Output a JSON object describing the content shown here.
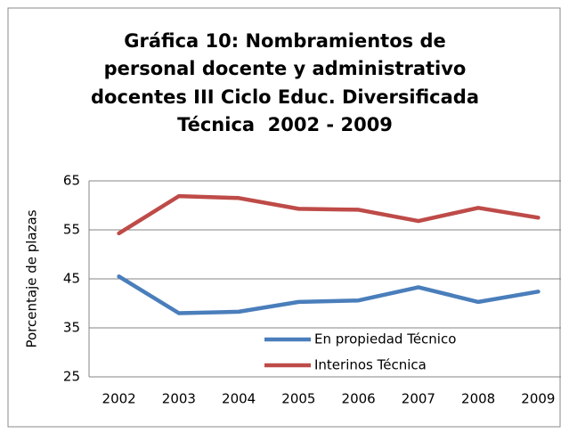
{
  "chart_data": {
    "type": "line",
    "title": [
      "Gráfica 10: Nombramientos de",
      "personal docente y administrativo",
      "docentes III Ciclo Educ. Diversificada",
      "Técnica  2002 - 2009"
    ],
    "y_label": "Porcentaje de plazas",
    "categories": [
      "2002",
      "2003",
      "2004",
      "2005",
      "2006",
      "2007",
      "2008",
      "2009"
    ],
    "series": [
      {
        "name": "En propiedad Técnico",
        "color": "#4a7ebb",
        "values": [
          45.5,
          38.0,
          38.3,
          40.3,
          40.6,
          43.3,
          40.3,
          42.4
        ]
      },
      {
        "name": "Interinos Técnica",
        "color": "#be4b48",
        "values": [
          54.3,
          61.9,
          61.5,
          59.3,
          59.1,
          56.8,
          59.5,
          57.5
        ]
      }
    ],
    "ylim": [
      25,
      65
    ],
    "yticks": [
      25,
      35,
      45,
      55,
      65
    ],
    "grid": true,
    "legend": "bottom-right"
  }
}
